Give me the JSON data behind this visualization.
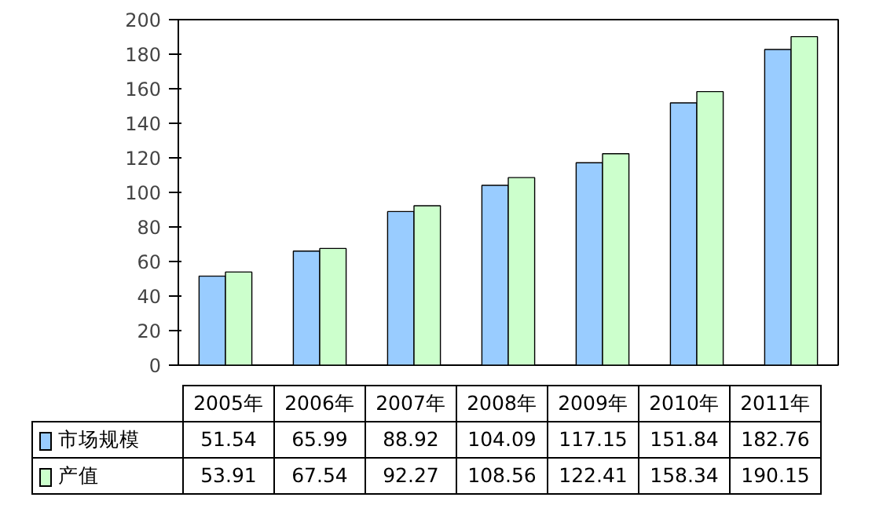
{
  "chart_data": {
    "type": "bar",
    "categories": [
      "2005年",
      "2006年",
      "2007年",
      "2008年",
      "2009年",
      "2010年",
      "2011年"
    ],
    "series": [
      {
        "name": "市场规模",
        "color": "#99ccff",
        "values": [
          51.54,
          65.99,
          88.92,
          104.09,
          117.15,
          151.84,
          182.76
        ]
      },
      {
        "name": "产值",
        "color": "#ccffcc",
        "values": [
          53.91,
          67.54,
          92.27,
          108.56,
          122.41,
          158.34,
          190.15
        ]
      }
    ],
    "ylim": [
      0,
      200
    ],
    "yticks": [
      0,
      20,
      40,
      60,
      80,
      100,
      120,
      140,
      160,
      180,
      200
    ],
    "data_labels": true,
    "legend": "bottom",
    "grid": false
  }
}
